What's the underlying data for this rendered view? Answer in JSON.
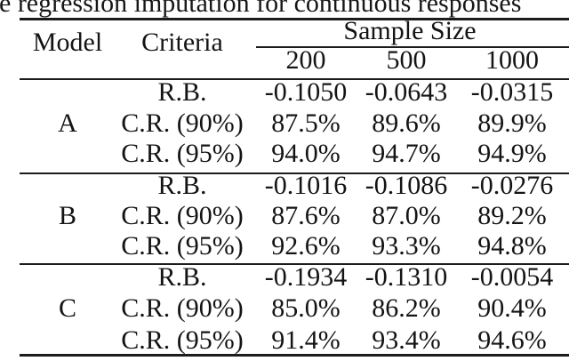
{
  "caption_fragment": "e regression imputation for continuous responses",
  "table": {
    "header": {
      "model": "Model",
      "criteria": "Criteria",
      "sample_size": "Sample Size",
      "sizes": [
        "200",
        "500",
        "1000"
      ]
    },
    "blocks": [
      {
        "model": "A",
        "rows": [
          {
            "criteria": "R.B.",
            "values": [
              "-0.1050",
              "-0.0643",
              "-0.0315"
            ]
          },
          {
            "criteria": "C.R. (90%)",
            "values": [
              "87.5%",
              "89.6%",
              "89.9%"
            ]
          },
          {
            "criteria": "C.R. (95%)",
            "values": [
              "94.0%",
              "94.7%",
              "94.9%"
            ]
          }
        ]
      },
      {
        "model": "B",
        "rows": [
          {
            "criteria": "R.B.",
            "values": [
              "-0.1016",
              "-0.1086",
              "-0.0276"
            ]
          },
          {
            "criteria": "C.R. (90%)",
            "values": [
              "87.6%",
              "87.0%",
              "89.2%"
            ]
          },
          {
            "criteria": "C.R. (95%)",
            "values": [
              "92.6%",
              "93.3%",
              "94.8%"
            ]
          }
        ]
      },
      {
        "model": "C",
        "rows": [
          {
            "criteria": "R.B.",
            "values": [
              "-0.1934",
              "-0.1310",
              "-0.0054"
            ]
          },
          {
            "criteria": "C.R. (90%)",
            "values": [
              "85.0%",
              "86.2%",
              "90.4%"
            ]
          },
          {
            "criteria": "C.R. (95%)",
            "values": [
              "91.4%",
              "93.4%",
              "94.6%"
            ]
          }
        ]
      }
    ]
  },
  "colors": {
    "text": "#141414",
    "rule": "#1c1c1c",
    "background": "#ffffff"
  }
}
